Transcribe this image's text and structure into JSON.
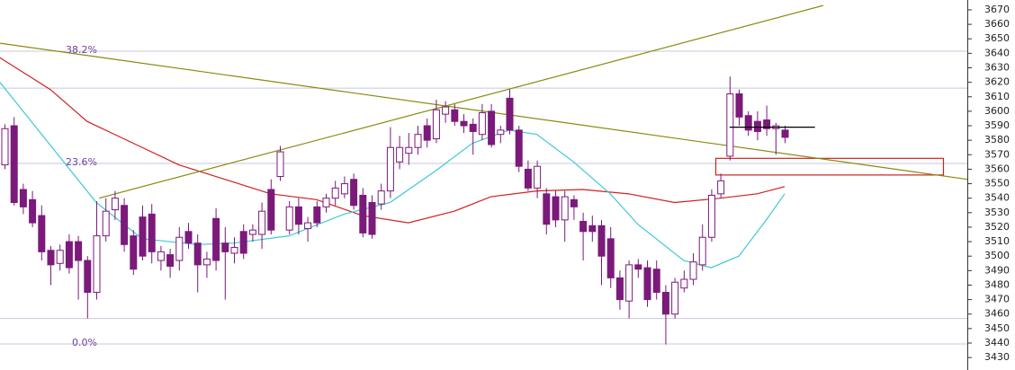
{
  "chart_data": {
    "type": "candlestick",
    "ylim": [
      3421.4,
      3676.8
    ],
    "xlim": [
      -0.49,
      104.9
    ],
    "yticks": [
      3430,
      3440,
      3450,
      3460,
      3470,
      3480,
      3490,
      3500,
      3510,
      3520,
      3530,
      3540,
      3550,
      3560,
      3570,
      3580,
      3590,
      3600,
      3610,
      3620,
      3630,
      3640,
      3650,
      3660,
      3670
    ],
    "up_color": "#ffffff",
    "down_color": "#7b1a7b",
    "candle_edge_color": "#7b1a7b",
    "open": [
      3563,
      3590,
      3546,
      3539,
      3528,
      3504,
      3495,
      3510,
      3510,
      3497,
      3475,
      3514,
      3532,
      3535,
      3514,
      3527,
      3529,
      3497,
      3501,
      3497,
      3517,
      3509,
      3494,
      3526,
      3509,
      3502,
      3517,
      3515,
      3515,
      3546,
      3555,
      3518,
      3534,
      3519,
      3534,
      3534,
      3540,
      3543,
      3553,
      3542,
      3537,
      3536,
      3545,
      3565,
      3571,
      3575,
      3590,
      3581,
      3598,
      3601,
      3593,
      3591,
      3584,
      3600,
      3584,
      3609,
      3587,
      3560,
      3547,
      3543,
      3541,
      3525,
      3539,
      3524,
      3521,
      3521,
      3512,
      3485,
      3469,
      3494,
      3492,
      3491,
      3475,
      3460,
      3478,
      3484,
      3494,
      3513,
      3543,
      3569,
      3612,
      3597,
      3593,
      3594,
      3588,
      3587
    ],
    "high": [
      3591,
      3596,
      3550,
      3545,
      3535,
      3507,
      3508,
      3515,
      3514,
      3500,
      3538,
      3540,
      3545,
      3540,
      3518,
      3535,
      3536,
      3507,
      3505,
      3520,
      3523,
      3515,
      3503,
      3533,
      3520,
      3513,
      3522,
      3522,
      3537,
      3553,
      3576,
      3538,
      3540,
      3527,
      3538,
      3543,
      3552,
      3555,
      3557,
      3547,
      3542,
      3550,
      3589,
      3583,
      3585,
      3590,
      3595,
      3608,
      3607,
      3605,
      3598,
      3595,
      3605,
      3605,
      3590,
      3615,
      3590,
      3566,
      3566,
      3547,
      3545,
      3545,
      3542,
      3530,
      3528,
      3525,
      3520,
      3490,
      3497,
      3498,
      3497,
      3497,
      3480,
      3485,
      3490,
      3502,
      3522,
      3546,
      3557,
      3624,
      3615,
      3600,
      3600,
      3604,
      3592,
      3590
    ],
    "low": [
      3560,
      3535,
      3529,
      3520,
      3497,
      3480,
      3490,
      3488,
      3470,
      3457,
      3470,
      3510,
      3525,
      3503,
      3487,
      3497,
      3495,
      3490,
      3485,
      3490,
      3505,
      3475,
      3485,
      3490,
      3470,
      3495,
      3498,
      3510,
      3505,
      3515,
      3552,
      3515,
      3515,
      3510,
      3520,
      3530,
      3535,
      3540,
      3532,
      3513,
      3512,
      3532,
      3540,
      3560,
      3563,
      3570,
      3575,
      3578,
      3592,
      3590,
      3585,
      3570,
      3580,
      3575,
      3578,
      3584,
      3558,
      3545,
      3540,
      3515,
      3520,
      3510,
      3525,
      3497,
      3510,
      3480,
      3478,
      3463,
      3457,
      3485,
      3465,
      3470,
      3439,
      3457,
      3475,
      3480,
      3490,
      3510,
      3540,
      3566,
      3590,
      3583,
      3580,
      3583,
      3570,
      3578
    ],
    "close": [
      3588,
      3537,
      3534,
      3523,
      3503,
      3494,
      3504,
      3492,
      3497,
      3475,
      3514,
      3531,
      3540,
      3508,
      3491,
      3500,
      3503,
      3503,
      3493,
      3513,
      3509,
      3494,
      3498,
      3497,
      3503,
      3506,
      3502,
      3518,
      3531,
      3518,
      3572,
      3534,
      3522,
      3523,
      3523,
      3540,
      3547,
      3550,
      3535,
      3516,
      3515,
      3545,
      3575,
      3575,
      3575,
      3584,
      3580,
      3601,
      3603,
      3593,
      3590,
      3586,
      3599,
      3577,
      3587,
      3587,
      3562,
      3547,
      3562,
      3522,
      3525,
      3541,
      3534,
      3517,
      3517,
      3500,
      3485,
      3470,
      3494,
      3491,
      3470,
      3475,
      3460,
      3482,
      3484,
      3496,
      3513,
      3542,
      3552,
      3612,
      3596,
      3587,
      3586,
      3588,
      3590,
      3582
    ],
    "series": [
      {
        "color": "#d02020",
        "x": [
          -0.5,
          5,
          9,
          14,
          19,
          24,
          29,
          34,
          39,
          44,
          49,
          53,
          58,
          63,
          68,
          73,
          78,
          82,
          85
        ],
        "values": [
          3637,
          3615,
          3593,
          3578,
          3563,
          3553,
          3543,
          3539,
          3528,
          3523,
          3531,
          3541,
          3545,
          3546,
          3543,
          3537,
          3540,
          3543,
          3548
        ]
      },
      {
        "color": "#40c8d8",
        "x": [
          -0.5,
          10,
          15,
          21,
          25,
          31,
          37,
          42,
          47,
          51,
          55,
          58,
          62,
          66,
          69,
          74,
          77,
          80,
          83,
          85
        ],
        "values": [
          3620,
          3537,
          3512,
          3508,
          3509,
          3514,
          3529,
          3537,
          3559,
          3578,
          3587,
          3584,
          3565,
          3543,
          3522,
          3497,
          3492,
          3500,
          3525,
          3543
        ]
      }
    ],
    "trend_lines": [
      {
        "color": "#8a8a10",
        "x": [
          -0.5,
          104.9
        ],
        "values": [
          3647,
          3553
        ]
      },
      {
        "color": "#8a8a10",
        "x": [
          10.3,
          89.2
        ],
        "values": [
          3540,
          3673
        ]
      }
    ],
    "fib_levels": [
      {
        "label": "38.2%",
        "value": 3641.5
      },
      {
        "label": "23.6%",
        "value": 3564
      },
      {
        "label": "0.0%",
        "value": 3439.4
      }
    ],
    "level_lines": [
      3616,
      3457
    ],
    "fib_color": "#c8c8dc",
    "price_line": {
      "value": 3589,
      "x": [
        79,
        88.3
      ],
      "color": "#000000"
    },
    "zone": {
      "x": [
        77.5,
        102.3
      ],
      "values": [
        3556,
        3567.5
      ],
      "color": "#d02020"
    }
  }
}
